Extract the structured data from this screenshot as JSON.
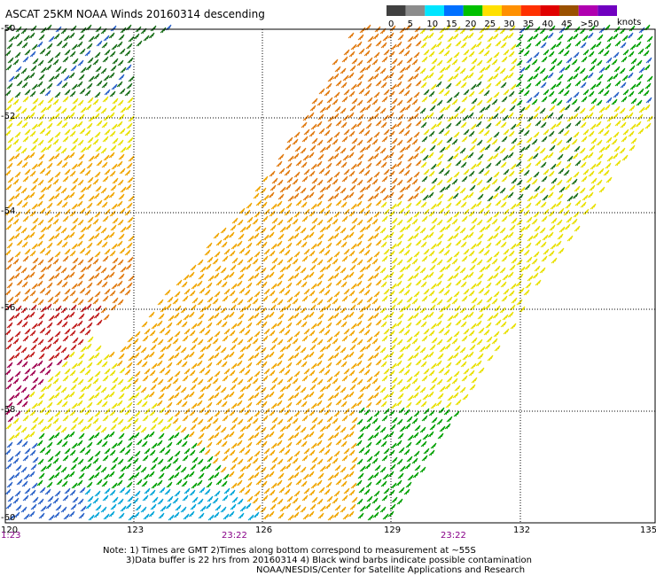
{
  "title": "ASCAT 25KM NOAA Winds 20160314 descending",
  "scale": {
    "units": "knots",
    "labels": [
      "0",
      "5",
      "10",
      "15",
      "20",
      "25",
      "30",
      "35",
      "40",
      "45",
      ">50"
    ],
    "colors": [
      "#404040",
      "#8c8c8c",
      "#00e5ff",
      "#0070ff",
      "#00c000",
      "#ffe000",
      "#ff9000",
      "#ff3000",
      "#e00000",
      "#9a5000",
      "#b000b0",
      "#7000c0"
    ]
  },
  "grid": {
    "lat_labels": [
      "-50",
      "-52",
      "-54",
      "-56",
      "-58",
      "-60"
    ],
    "lon_labels": [
      "120",
      "123",
      "126",
      "129",
      "132",
      "135"
    ]
  },
  "times": [
    "1:23",
    "23:22",
    "23:22"
  ],
  "notes": {
    "line1": "Note: 1) Times are GMT 2)Times along bottom correspond to measurement at ~55S",
    "line2": "3)Data buffer is 22 hrs from 20160314 4) Black wind barbs indicate possible contamination",
    "credit": "NOAA/NESDIS/Center for Satellite Applications and Research"
  },
  "barb_colors": {
    "calm": "#2a62c8",
    "light": "#00a4d8",
    "moderate": "#00a000",
    "fresh": "#1a6f1a",
    "strong": "#e8e000",
    "near_gale": "#f0a500",
    "gale": "#e07a10",
    "strong_gale": "#c01a1a",
    "storm": "#a00050"
  }
}
